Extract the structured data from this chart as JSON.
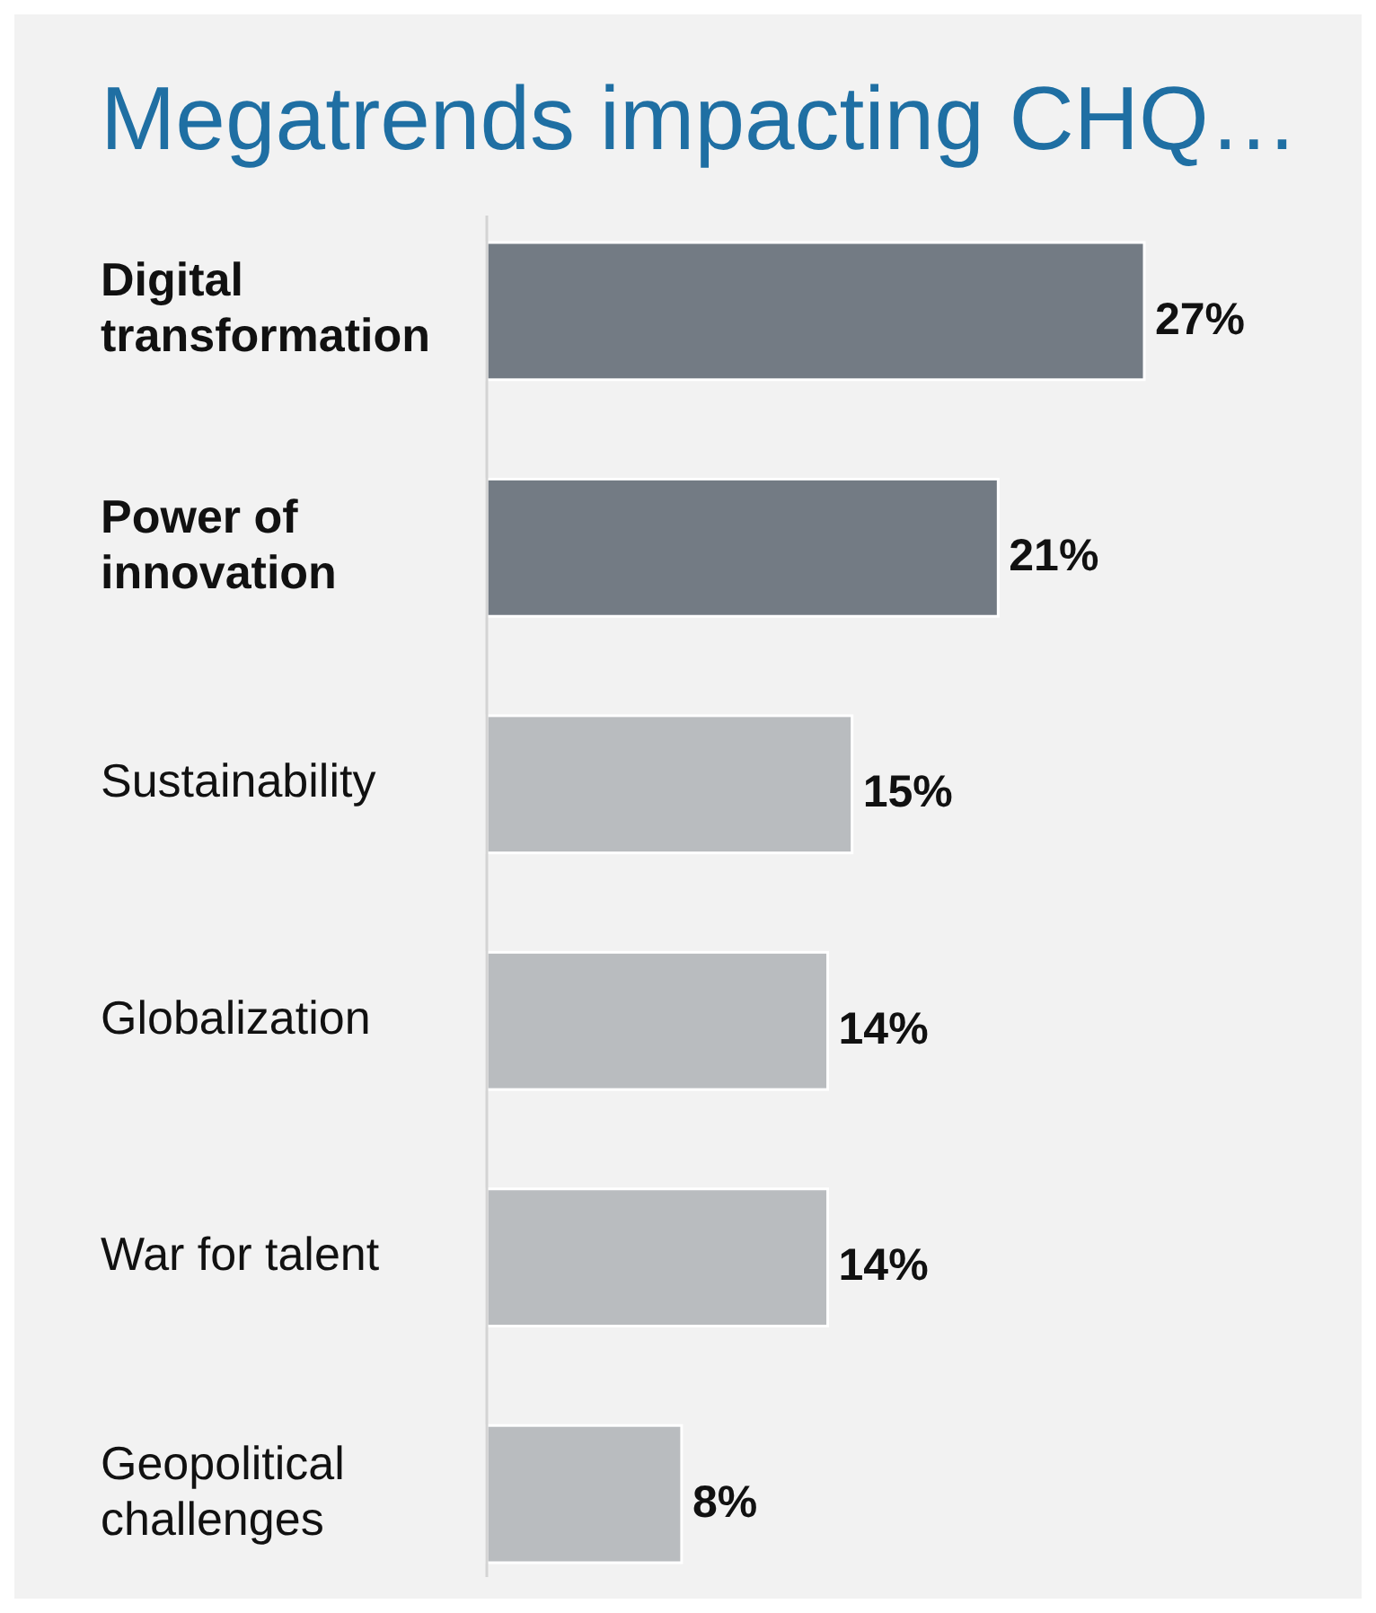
{
  "chart_data": {
    "type": "bar",
    "orientation": "horizontal",
    "title": "Megatrends impacting CHQ…",
    "categories": [
      "Digital transformation",
      "Power of innovation",
      "Sustainability",
      "Globalization",
      "War for talent",
      "Geopolitical challenges"
    ],
    "values": [
      27,
      21,
      15,
      14,
      14,
      8
    ],
    "colors": [
      "#737b84",
      "#737b84",
      "#b9bcbf",
      "#b9bcbf",
      "#b9bcbf",
      "#b9bcbf"
    ],
    "value_labels": [
      "27%",
      "21%",
      "15%",
      "14%",
      "14%",
      "8%"
    ],
    "relative": false
  }
}
